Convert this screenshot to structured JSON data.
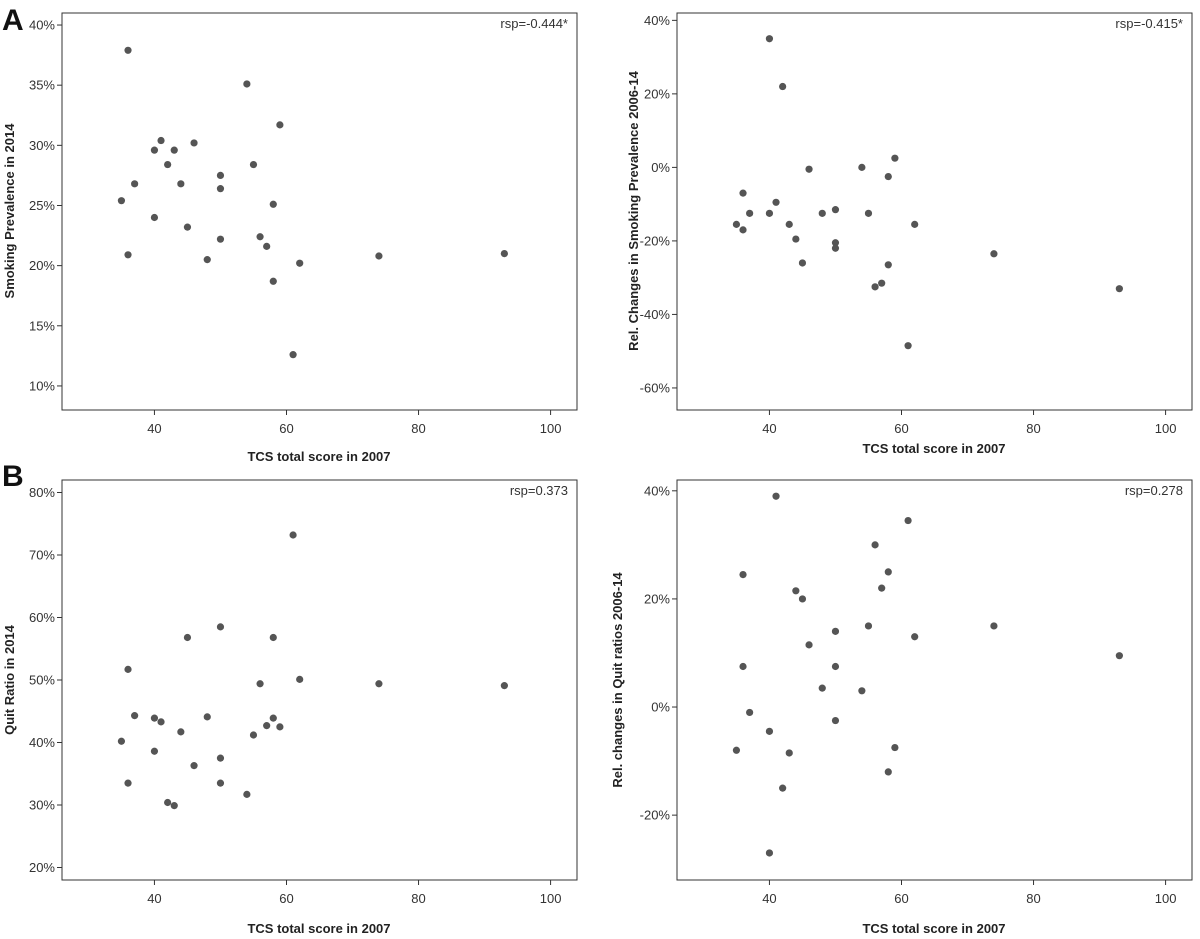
{
  "panel_labels": [
    "A",
    "B"
  ],
  "chart_data": [
    {
      "type": "scatter",
      "xlabel": "TCS total score in 2007",
      "ylabel": "Smoking Prevalence in 2014",
      "annotation": "rsp=-0.444*",
      "xlim": [
        26,
        104
      ],
      "ylim": [
        8,
        41
      ],
      "xticks": [
        40,
        60,
        80,
        100
      ],
      "yticks": [
        10,
        15,
        20,
        25,
        30,
        35,
        40
      ],
      "ytick_labels": [
        "10%",
        "15%",
        "20%",
        "25%",
        "30%",
        "35%",
        "40%"
      ],
      "points": [
        [
          35,
          25.4
        ],
        [
          36,
          37.9
        ],
        [
          36,
          20.9
        ],
        [
          37,
          26.8
        ],
        [
          40,
          29.6
        ],
        [
          40,
          24
        ],
        [
          41,
          30.4
        ],
        [
          42,
          28.4
        ],
        [
          43,
          29.6
        ],
        [
          44,
          26.8
        ],
        [
          45,
          23.2
        ],
        [
          46,
          30.2
        ],
        [
          48,
          20.5
        ],
        [
          50,
          27.5
        ],
        [
          50,
          26.4
        ],
        [
          50,
          22.2
        ],
        [
          54,
          35.1
        ],
        [
          55,
          28.4
        ],
        [
          56,
          22.4
        ],
        [
          57,
          21.6
        ],
        [
          58,
          25.1
        ],
        [
          58,
          18.7
        ],
        [
          59,
          31.7
        ],
        [
          61,
          12.6
        ],
        [
          62,
          20.2
        ],
        [
          74,
          20.8
        ],
        [
          93,
          21
        ]
      ]
    },
    {
      "type": "scatter",
      "xlabel": "TCS total score in 2007",
      "ylabel": "Rel. Changes in Smoking Prevalence 2006-14",
      "annotation": "rsp=-0.415*",
      "xlim": [
        26,
        104
      ],
      "ylim": [
        -66,
        42
      ],
      "xticks": [
        40,
        60,
        80,
        100
      ],
      "yticks": [
        -60,
        -40,
        -20,
        0,
        20,
        40
      ],
      "ytick_labels": [
        "-60%",
        "-40%",
        "-20%",
        "0%",
        "20%",
        "40%"
      ],
      "points": [
        [
          35,
          -15.5
        ],
        [
          36,
          -7
        ],
        [
          36,
          -17
        ],
        [
          37,
          -12.5
        ],
        [
          40,
          35
        ],
        [
          40,
          -12.5
        ],
        [
          41,
          -9.5
        ],
        [
          42,
          22
        ],
        [
          43,
          -15.5
        ],
        [
          44,
          -19.5
        ],
        [
          45,
          -26
        ],
        [
          46,
          -0.5
        ],
        [
          48,
          -12.5
        ],
        [
          50,
          -11.5
        ],
        [
          50,
          -20.5
        ],
        [
          50,
          -22
        ],
        [
          54,
          0
        ],
        [
          55,
          -12.5
        ],
        [
          56,
          -32.5
        ],
        [
          57,
          -31.5
        ],
        [
          58,
          -26.5
        ],
        [
          58,
          -2.5
        ],
        [
          59,
          2.5
        ],
        [
          61,
          -48.5
        ],
        [
          62,
          -15.5
        ],
        [
          74,
          -23.5
        ],
        [
          93,
          -33
        ]
      ]
    },
    {
      "type": "scatter",
      "xlabel": "TCS total score in 2007",
      "ylabel": "Quit Ratio in 2014",
      "annotation": "rsp=0.373",
      "xlim": [
        26,
        104
      ],
      "ylim": [
        18,
        82
      ],
      "xticks": [
        40,
        60,
        80,
        100
      ],
      "yticks": [
        20,
        30,
        40,
        50,
        60,
        70,
        80
      ],
      "ytick_labels": [
        "20%",
        "30%",
        "40%",
        "50%",
        "60%",
        "70%",
        "80%"
      ],
      "points": [
        [
          35,
          40.2
        ],
        [
          36,
          51.7
        ],
        [
          36,
          33.5
        ],
        [
          37,
          44.3
        ],
        [
          40,
          43.9
        ],
        [
          40,
          38.6
        ],
        [
          41,
          43.3
        ],
        [
          42,
          30.4
        ],
        [
          43,
          29.9
        ],
        [
          44,
          41.7
        ],
        [
          45,
          56.8
        ],
        [
          46,
          36.3
        ],
        [
          48,
          44.1
        ],
        [
          50,
          58.5
        ],
        [
          50,
          37.5
        ],
        [
          50,
          33.5
        ],
        [
          54,
          31.7
        ],
        [
          55,
          41.2
        ],
        [
          56,
          49.4
        ],
        [
          57,
          42.7
        ],
        [
          58,
          43.9
        ],
        [
          58,
          56.8
        ],
        [
          59,
          42.5
        ],
        [
          61,
          73.2
        ],
        [
          62,
          50.1
        ],
        [
          74,
          49.4
        ],
        [
          93,
          49.1
        ]
      ]
    },
    {
      "type": "scatter",
      "xlabel": "TCS total score in 2007",
      "ylabel": "Rel. changes in Quit ratios 2006-14",
      "annotation": "rsp=0.278",
      "xlim": [
        26,
        104
      ],
      "ylim": [
        -32,
        42
      ],
      "xticks": [
        40,
        60,
        80,
        100
      ],
      "yticks": [
        -20,
        0,
        20,
        40
      ],
      "ytick_labels": [
        "-20%",
        "0%",
        "20%",
        "40%"
      ],
      "points": [
        [
          35,
          -8
        ],
        [
          36,
          24.5
        ],
        [
          36,
          7.5
        ],
        [
          37,
          -1
        ],
        [
          40,
          -4.5
        ],
        [
          40,
          -27
        ],
        [
          41,
          39
        ],
        [
          42,
          -15
        ],
        [
          43,
          -8.5
        ],
        [
          44,
          21.5
        ],
        [
          45,
          20
        ],
        [
          46,
          11.5
        ],
        [
          48,
          3.5
        ],
        [
          50,
          14
        ],
        [
          50,
          7.5
        ],
        [
          50,
          -2.5
        ],
        [
          54,
          3
        ],
        [
          55,
          15
        ],
        [
          56,
          30
        ],
        [
          57,
          22
        ],
        [
          58,
          -12
        ],
        [
          58,
          25
        ],
        [
          59,
          -7.5
        ],
        [
          61,
          34.5
        ],
        [
          62,
          13
        ],
        [
          74,
          15
        ],
        [
          93,
          9.5
        ]
      ]
    }
  ]
}
